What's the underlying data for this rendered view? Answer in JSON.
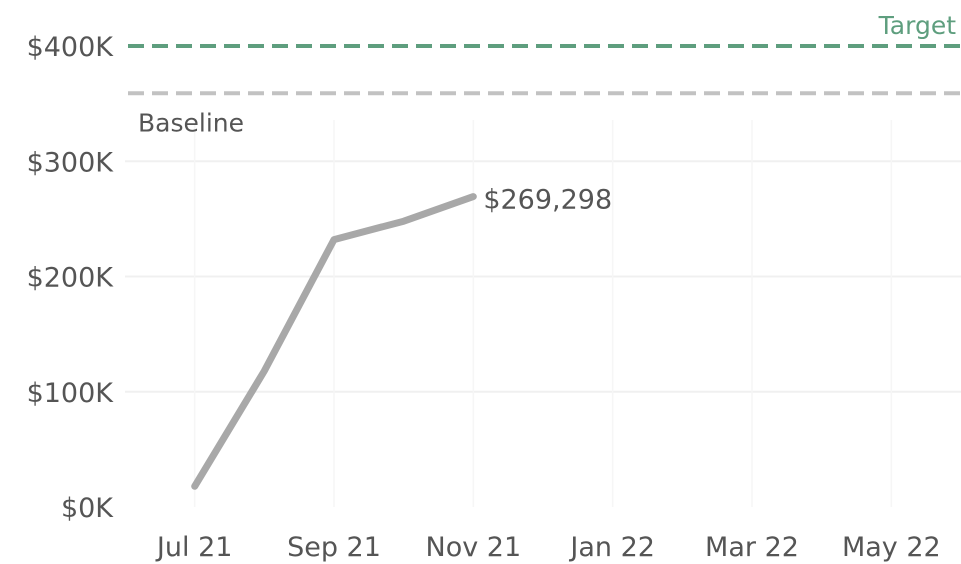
{
  "chart_data": {
    "type": "line",
    "x": [
      "2021-07",
      "2021-08",
      "2021-09",
      "2021-10",
      "2021-11"
    ],
    "series": [
      {
        "values": [
          18000,
          118000,
          232000,
          248000,
          269298
        ]
      }
    ],
    "x_range": [
      "2021-06",
      "2022-06"
    ],
    "x_ticks": [
      "2021-07",
      "2021-09",
      "2021-11",
      "2022-01",
      "2022-03",
      "2022-05"
    ],
    "x_tick_labels": [
      "Jul 21",
      "Sep 21",
      "Nov 21",
      "Jan 22",
      "Mar 22",
      "May 22"
    ],
    "ylim": [
      0,
      400000
    ],
    "y_ticks": [
      0,
      100000,
      200000,
      300000,
      400000
    ],
    "y_tick_labels": [
      "$0K",
      "$100K",
      "$200K",
      "$300K",
      "$400K"
    ],
    "grid": true,
    "reference_lines": [
      {
        "label": "Target",
        "value": 400000,
        "color": "#5e9e7e"
      },
      {
        "label": "Baseline",
        "value": 359000,
        "color": "#c2c2c2"
      }
    ],
    "end_label": "$269,298",
    "colors": {
      "line": "#a8a8a8",
      "grid": "#f0f0f0",
      "text": "#555555"
    }
  }
}
